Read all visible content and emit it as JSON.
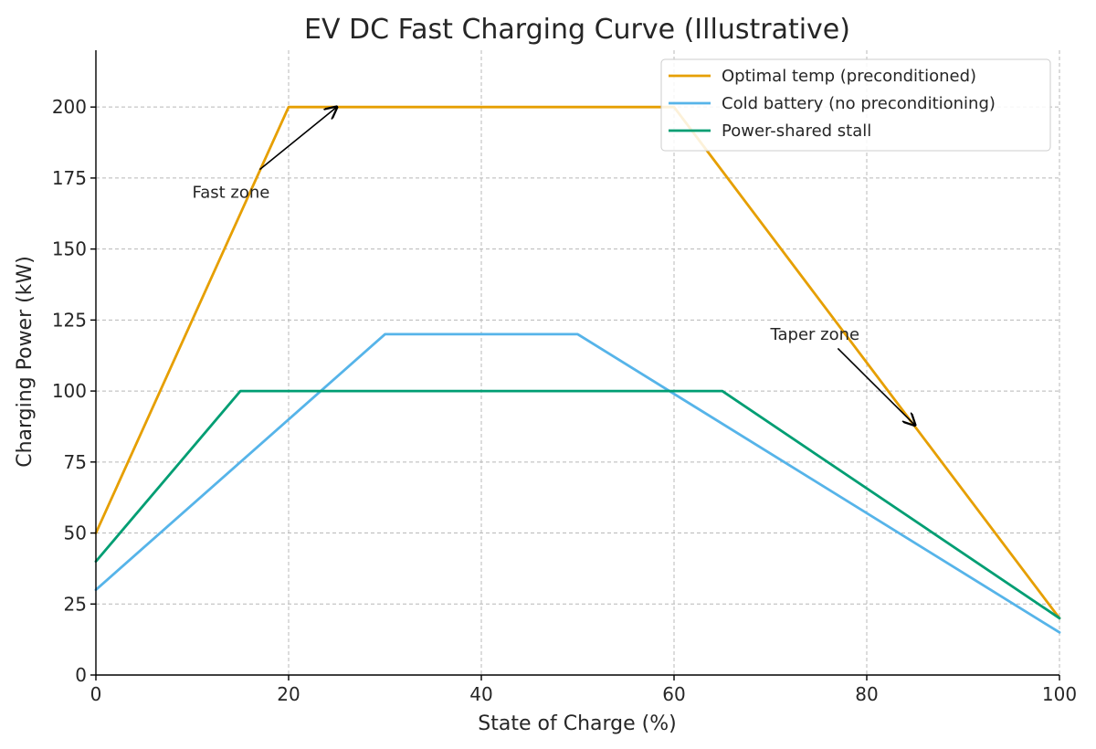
{
  "colors": {
    "optimal": "#E69F00",
    "cold": "#56B4E9",
    "stall": "#009E73",
    "axis": "#000000",
    "grid": "#b8b8b8",
    "legend_border": "#cccccc"
  },
  "chart_data": {
    "type": "line",
    "title": "EV DC Fast Charging Curve (Illustrative)",
    "xlabel": "State of Charge (%)",
    "ylabel": "Charging Power (kW)",
    "xlim": [
      0,
      100
    ],
    "ylim": [
      0,
      220
    ],
    "xticks": [
      0,
      20,
      40,
      60,
      80,
      100
    ],
    "yticks": [
      0,
      25,
      50,
      75,
      100,
      125,
      150,
      175,
      200
    ],
    "grid": true,
    "legend_position": "top-right",
    "series": [
      {
        "name": "Optimal temp (preconditioned)",
        "color_key": "optimal",
        "points": [
          [
            0,
            50
          ],
          [
            20,
            200
          ],
          [
            60,
            200
          ],
          [
            100,
            20
          ]
        ]
      },
      {
        "name": "Cold battery (no preconditioning)",
        "color_key": "cold",
        "points": [
          [
            0,
            30
          ],
          [
            30,
            120
          ],
          [
            50,
            120
          ],
          [
            100,
            15
          ]
        ]
      },
      {
        "name": "Power-shared stall",
        "color_key": "stall",
        "points": [
          [
            0,
            40
          ],
          [
            15,
            100
          ],
          [
            65,
            100
          ],
          [
            100,
            20
          ]
        ]
      }
    ],
    "annotations": [
      {
        "text": "Fast zone",
        "text_at": [
          10,
          170
        ],
        "arrow_from": [
          17,
          178
        ],
        "arrow_to": [
          25,
          200
        ]
      },
      {
        "text": "Taper zone",
        "text_at": [
          70,
          120
        ],
        "arrow_from": [
          77,
          115
        ],
        "arrow_to": [
          85,
          88
        ]
      }
    ]
  }
}
